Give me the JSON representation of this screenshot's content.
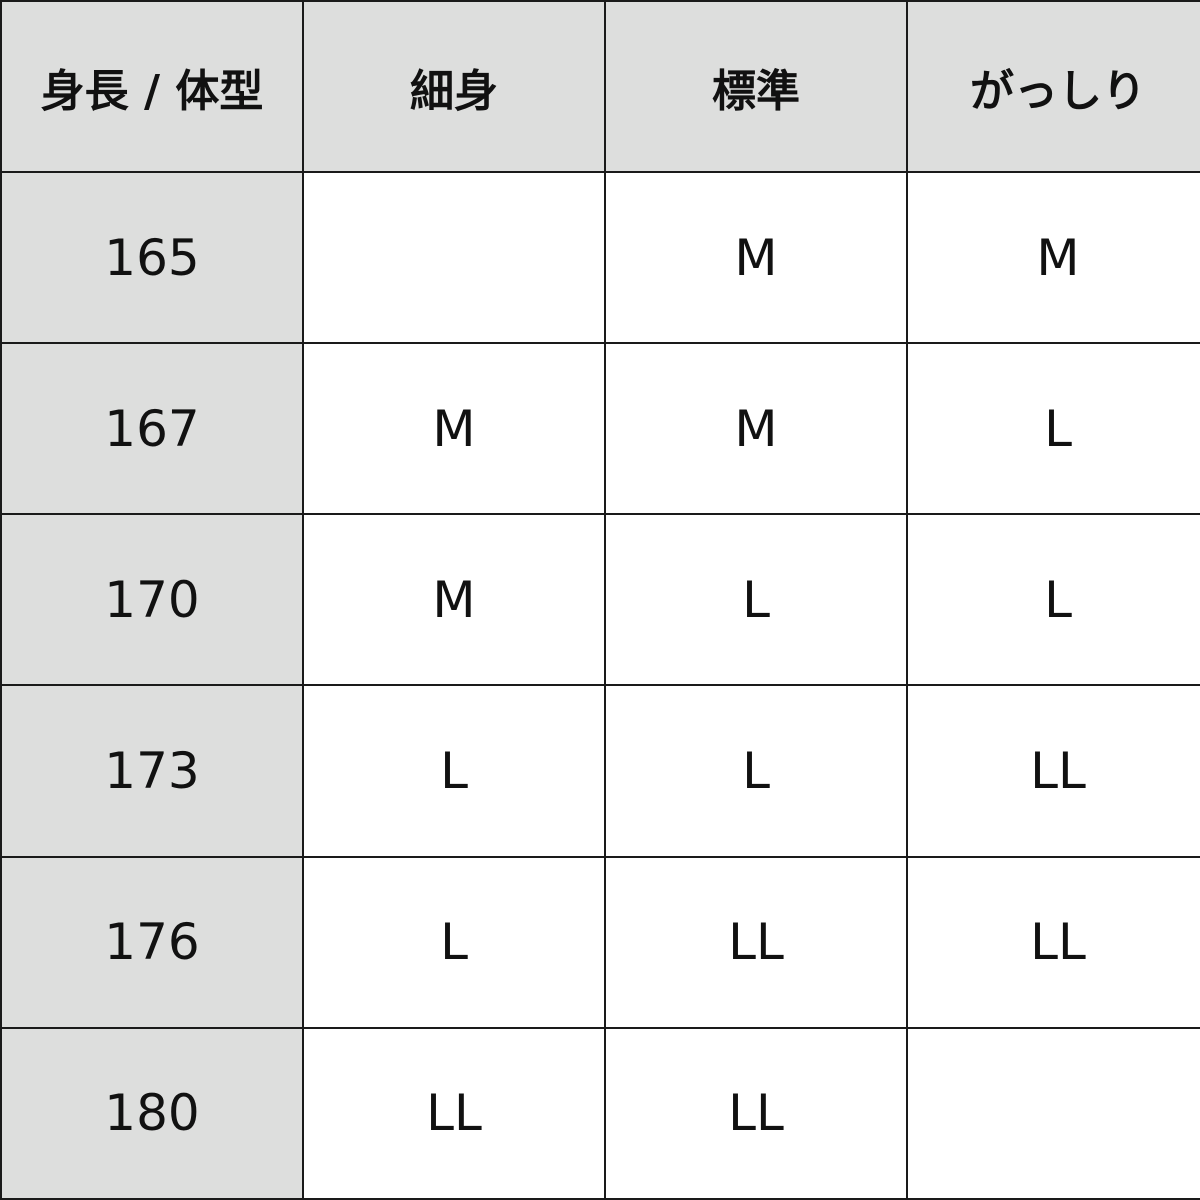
{
  "table": {
    "headers": [
      "身長 / 体型",
      "細身",
      "標準",
      "がっしり"
    ],
    "rows": [
      {
        "height": "165",
        "sizes": [
          "",
          "M",
          "M"
        ]
      },
      {
        "height": "167",
        "sizes": [
          "M",
          "M",
          "L"
        ]
      },
      {
        "height": "170",
        "sizes": [
          "M",
          "L",
          "L"
        ]
      },
      {
        "height": "173",
        "sizes": [
          "L",
          "L",
          "LL"
        ]
      },
      {
        "height": "176",
        "sizes": [
          "L",
          "LL",
          "LL"
        ]
      },
      {
        "height": "180",
        "sizes": [
          "LL",
          "LL",
          ""
        ]
      }
    ]
  },
  "colors": {
    "header_bg": "#dddedd",
    "border": "#1a1a1a",
    "cell_bg": "#ffffff"
  }
}
